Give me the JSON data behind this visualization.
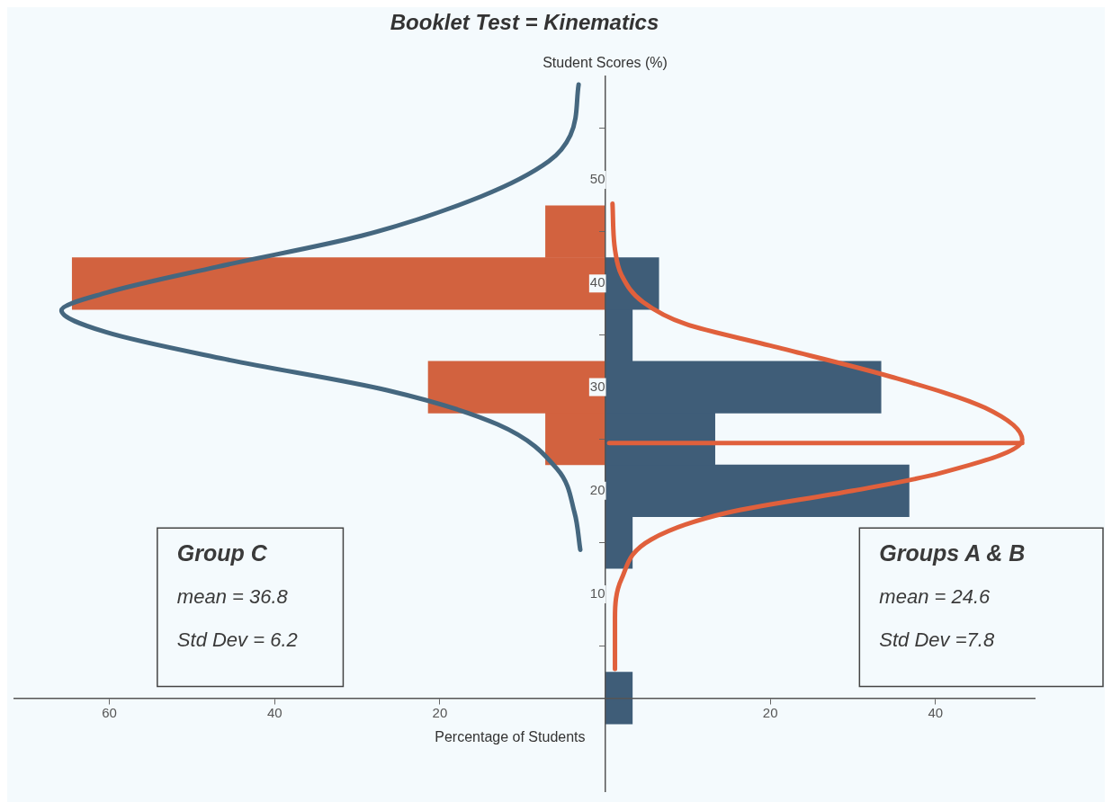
{
  "chart_data": {
    "type": "histogram",
    "orientation": "horizontal",
    "title": "Booklet Test = Kinematics",
    "xlabel": "Percentage of Students",
    "ylabel": "Student Scores (%)",
    "series": [
      {
        "type": "histogram",
        "color": "#d2623f",
        "bins": [
          22.5,
          27.5,
          32.5,
          37.5,
          42.5,
          47.5
        ],
        "values": [
          -7.2,
          -21.4,
          0,
          -64.5,
          -7.2
        ]
      },
      {
        "type": "histogram",
        "color": "#3f5d78",
        "bins": [
          -2.5,
          2.5,
          7.5,
          12.5,
          17.5,
          22.5,
          27.5,
          32.5,
          37.5,
          42.5
        ],
        "values": [
          3.3,
          0,
          0,
          3.3,
          36.8,
          13.3,
          33.4,
          3.3,
          6.5
        ]
      },
      {
        "type": "line",
        "color": "#45677f",
        "x": [
          14.3,
          17.9,
          22.1,
          26.4,
          29.7,
          32.7,
          35.3,
          37.4,
          39.1,
          41.6,
          44.6,
          48.4,
          51.8,
          54.3,
          59.2
        ],
        "values": [
          -3,
          -3.7,
          -5.8,
          -13,
          -26.4,
          -46,
          -60.4,
          -65.8,
          -60.4,
          -47,
          -29.5,
          -15,
          -6.8,
          -4.2,
          -3.2
        ]
      },
      {
        "type": "line",
        "color": "#e0603c",
        "x": [
          2.8,
          7.7,
          11.5,
          15.3,
          17.9,
          20,
          21.7,
          24.9,
          28,
          31,
          34,
          36.1,
          38.2,
          40.8,
          43.3,
          47.7
        ],
        "values": [
          1.2,
          1.2,
          2,
          5.6,
          14.9,
          30,
          40.6,
          50.5,
          46,
          34.6,
          20,
          9.7,
          4.6,
          2,
          1.2,
          0.9
        ]
      },
      {
        "type": "line",
        "color": "#e0603c",
        "x": [
          24.6,
          24.6
        ],
        "values": [
          0.5,
          50.5
        ]
      }
    ],
    "xlim": [
      -71.5,
      52
    ],
    "ylim": [
      -9,
      60
    ],
    "xticks": [
      {
        "value": -60,
        "label": "60"
      },
      {
        "value": -40,
        "label": "40"
      },
      {
        "value": -20,
        "label": "20"
      },
      20,
      40
    ],
    "yticks": [
      10,
      20,
      30,
      40,
      50
    ],
    "grid": false,
    "legend": false,
    "marker": "none",
    "annotations": [
      "Group C",
      "mean = 36.8",
      "Std Dev = 6.2",
      "Groups A & B",
      "mean = 24.6",
      "Std Dev =7.8"
    ]
  }
}
